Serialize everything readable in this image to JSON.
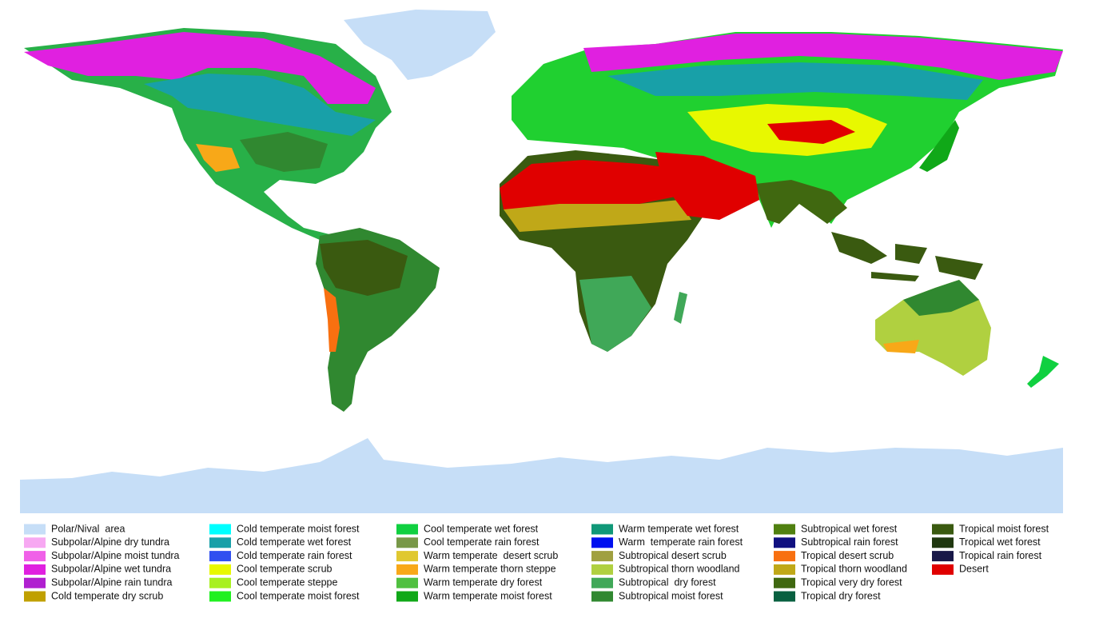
{
  "legend": {
    "columns": [
      [
        {
          "label": "Polar/Nival  area",
          "color": "#c6def7"
        },
        {
          "label": "Subpolar/Alpine dry tundra",
          "color": "#f7a8f2"
        },
        {
          "label": "Subpolar/Alpine moist tundra",
          "color": "#f060e8"
        },
        {
          "label": "Subpolar/Alpine wet tundra",
          "color": "#e020e0"
        },
        {
          "label": "Subpolar/Alpine rain tundra",
          "color": "#b020d0"
        },
        {
          "label": "Cold temperate dry scrub",
          "color": "#c0a000"
        }
      ],
      [
        {
          "label": "Cold temperate moist forest",
          "color": "#00ffff"
        },
        {
          "label": "Cold temperate wet forest",
          "color": "#18a0a8"
        },
        {
          "label": "Cold temperate rain forest",
          "color": "#3050f0"
        },
        {
          "label": "Cool temperate scrub",
          "color": "#e8f800"
        },
        {
          "label": "Cool temperate steppe",
          "color": "#a8f020"
        },
        {
          "label": "Cool temperate moist forest",
          "color": "#20f020"
        }
      ],
      [
        {
          "label": "Cool temperate wet forest",
          "color": "#10d040"
        },
        {
          "label": "Cool temperate rain forest",
          "color": "#789848"
        },
        {
          "label": "Warm temperate  desert scrub",
          "color": "#e0c830"
        },
        {
          "label": "Warm temperate thorn steppe",
          "color": "#f8a818"
        },
        {
          "label": "Warm temperate dry forest",
          "color": "#50c040"
        },
        {
          "label": "Warm temperate moist forest",
          "color": "#10a818"
        }
      ],
      [
        {
          "label": "Warm temperate wet forest",
          "color": "#109878"
        },
        {
          "label": "Warm  temperate rain forest",
          "color": "#0010f0"
        },
        {
          "label": "Subtropical desert scrub",
          "color": "#a0a040"
        },
        {
          "label": "Subtropical thorn woodland",
          "color": "#b0d040"
        },
        {
          "label": "Subtropical  dry forest",
          "color": "#40a858"
        },
        {
          "label": "Subtropical moist forest",
          "color": "#308830"
        }
      ],
      [
        {
          "label": "Subtropical wet forest",
          "color": "#508010"
        },
        {
          "label": "Subtropical rain forest",
          "color": "#101080"
        },
        {
          "label": "Tropical desert scrub",
          "color": "#f87010"
        },
        {
          "label": "Tropical thorn woodland",
          "color": "#c0a818"
        },
        {
          "label": "Tropical very dry forest",
          "color": "#406810"
        },
        {
          "label": "Tropical dry forest",
          "color": "#086040"
        }
      ],
      [
        {
          "label": "Tropical moist forest",
          "color": "#3a5a10"
        },
        {
          "label": "Tropical wet forest",
          "color": "#203810"
        },
        {
          "label": "Tropical rain forest",
          "color": "#181848"
        },
        {
          "label": "Desert",
          "color": "#e00000"
        }
      ]
    ]
  }
}
